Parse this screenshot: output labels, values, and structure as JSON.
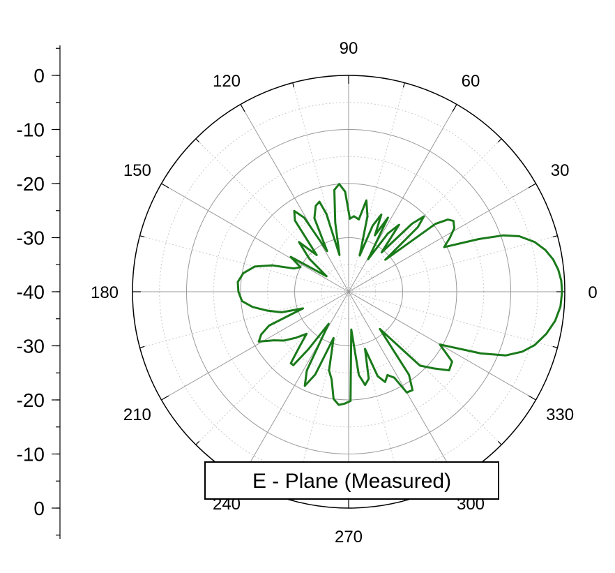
{
  "chart_data": {
    "type": "polar-line",
    "legend": "E - Plane (Measured)",
    "legend_position": "bottom-center",
    "radial_axis": {
      "min": -40,
      "max": 0,
      "tick_labels_upper": [
        "0",
        "-10",
        "-20",
        "-30",
        "-40"
      ],
      "tick_labels_lower": [
        "-30",
        "-20",
        "-10",
        "0"
      ],
      "circles": [
        -40,
        -30,
        -20,
        -10,
        0
      ],
      "minor_circles": [
        -35,
        -25,
        -15,
        -5
      ]
    },
    "angular_axis": {
      "major_step_deg": 30,
      "minor_step_deg": 15,
      "labels": [
        "0",
        "30",
        "60",
        "90",
        "120",
        "150",
        "180",
        "210",
        "240",
        "270",
        "300",
        "330"
      ]
    },
    "grid": true,
    "series": [
      {
        "color": "#1a7a1a",
        "points": [
          [
            0,
            -0.5
          ],
          [
            3,
            -0.6
          ],
          [
            6,
            -1.0
          ],
          [
            9,
            -1.7
          ],
          [
            12,
            -2.8
          ],
          [
            15,
            -4.4
          ],
          [
            18,
            -6.8
          ],
          [
            20,
            -9.5
          ],
          [
            22,
            -14.0
          ],
          [
            25,
            -20.5
          ],
          [
            28,
            -18.8
          ],
          [
            31,
            -17.2
          ],
          [
            34,
            -16.6
          ],
          [
            36,
            -17.3
          ],
          [
            38,
            -19.6
          ],
          [
            41,
            -31.0
          ],
          [
            43,
            -22.5
          ],
          [
            45,
            -20.3
          ],
          [
            47,
            -22.8
          ],
          [
            50,
            -30.5
          ],
          [
            53,
            -24.5
          ],
          [
            56,
            -27.0
          ],
          [
            59,
            -33.0
          ],
          [
            62,
            -24.5
          ],
          [
            65,
            -28.5
          ],
          [
            67,
            -24.5
          ],
          [
            70,
            -27.0
          ],
          [
            73,
            -33.0
          ],
          [
            76,
            -25.6
          ],
          [
            79,
            -22.8
          ],
          [
            82,
            -26.5
          ],
          [
            86,
            -26.0
          ],
          [
            89,
            -26.5
          ],
          [
            92,
            -21.5
          ],
          [
            95,
            -20.0
          ],
          [
            98,
            -21.0
          ],
          [
            101,
            -27.0
          ],
          [
            104,
            -33.0
          ],
          [
            106,
            -25.0
          ],
          [
            108,
            -22.5
          ],
          [
            111,
            -23.0
          ],
          [
            115,
            -25.0
          ],
          [
            118,
            -31.5
          ],
          [
            121,
            -24.0
          ],
          [
            124,
            -22.0
          ],
          [
            127,
            -23.5
          ],
          [
            131,
            -31.0
          ],
          [
            135,
            -27.0
          ],
          [
            140,
            -30.5
          ],
          [
            145,
            -35.0
          ],
          [
            149,
            -27.5
          ],
          [
            153,
            -30.0
          ],
          [
            157,
            -29.0
          ],
          [
            161,
            -25.0
          ],
          [
            165,
            -22.0
          ],
          [
            170,
            -20.2
          ],
          [
            175,
            -19.4
          ],
          [
            180,
            -19.6
          ],
          [
            185,
            -20.2
          ],
          [
            189,
            -22.0
          ],
          [
            193,
            -24.5
          ],
          [
            197,
            -27.0
          ],
          [
            200,
            -31.0
          ],
          [
            203,
            -24.0
          ],
          [
            206,
            -22.0
          ],
          [
            209,
            -21.0
          ],
          [
            213,
            -23.5
          ],
          [
            217,
            -25.0
          ],
          [
            221,
            -27.0
          ],
          [
            225,
            -29.0
          ],
          [
            228,
            -26.5
          ],
          [
            231,
            -23.0
          ],
          [
            233,
            -23.0
          ],
          [
            235,
            -27.0
          ],
          [
            238,
            -33.0
          ],
          [
            242,
            -23.5
          ],
          [
            245,
            -20.8
          ],
          [
            248,
            -23.5
          ],
          [
            252,
            -31.0
          ],
          [
            256,
            -25.0
          ],
          [
            259,
            -23.5
          ],
          [
            262,
            -20.0
          ],
          [
            265,
            -19.0
          ],
          [
            268,
            -19.3
          ],
          [
            271,
            -19.8
          ],
          [
            274,
            -33.0
          ],
          [
            277,
            -24.5
          ],
          [
            280,
            -22.5
          ],
          [
            283,
            -23.5
          ],
          [
            286,
            -29.0
          ],
          [
            289,
            -23.5
          ],
          [
            292,
            -22.0
          ],
          [
            295,
            -23.0
          ],
          [
            298,
            -22.0
          ],
          [
            300,
            -18.5
          ],
          [
            303,
            -18.3
          ],
          [
            306,
            -21.0
          ],
          [
            310,
            -31.0
          ],
          [
            314,
            -21.0
          ],
          [
            318,
            -18.8
          ],
          [
            322,
            -16.4
          ],
          [
            326,
            -16.9
          ],
          [
            330,
            -20.5
          ],
          [
            335,
            -13.0
          ],
          [
            338,
            -8.6
          ],
          [
            341,
            -6.0
          ],
          [
            344,
            -4.2
          ],
          [
            348,
            -2.6
          ],
          [
            352,
            -1.4
          ],
          [
            356,
            -0.7
          ],
          [
            360,
            -0.5
          ]
        ]
      }
    ]
  }
}
